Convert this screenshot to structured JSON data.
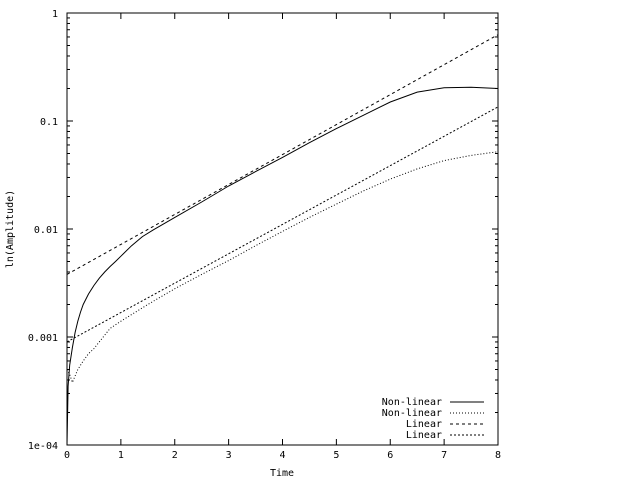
{
  "chart_data": {
    "type": "line",
    "title": "",
    "xlabel": "Time",
    "ylabel": "ln(Amplitude)",
    "xlim": [
      0,
      8
    ],
    "ylim": [
      0.0001,
      1
    ],
    "yscale": "log",
    "grid": false,
    "legend_position": "bottom-right",
    "x_ticks": [
      0,
      1,
      2,
      3,
      4,
      5,
      6,
      7,
      8
    ],
    "x_tick_labels": [
      "0",
      "1",
      "2",
      "3",
      "4",
      "5",
      "6",
      "7",
      "8"
    ],
    "y_ticks": [
      0.0001,
      0.001,
      0.01,
      0.1,
      1
    ],
    "y_tick_labels": [
      "1e-04",
      "0.001",
      "0.01",
      "0.1",
      "1"
    ],
    "series": [
      {
        "name": "Non-linear",
        "style": "solid",
        "x": [
          0.0,
          0.02,
          0.05,
          0.1,
          0.15,
          0.2,
          0.25,
          0.3,
          0.4,
          0.5,
          0.6,
          0.7,
          0.8,
          0.9,
          1.0,
          1.2,
          1.4,
          1.6,
          1.8,
          2.0,
          2.5,
          3.0,
          3.5,
          4.0,
          4.5,
          5.0,
          5.5,
          6.0,
          6.5,
          7.0,
          7.5,
          8.0
        ],
        "y": [
          0.0001,
          0.00035,
          0.00055,
          0.0008,
          0.0011,
          0.0014,
          0.0017,
          0.002,
          0.0025,
          0.003,
          0.0035,
          0.004,
          0.0045,
          0.005,
          0.0056,
          0.007,
          0.0085,
          0.0098,
          0.0112,
          0.0128,
          0.0178,
          0.025,
          0.034,
          0.046,
          0.063,
          0.085,
          0.113,
          0.15,
          0.185,
          0.203,
          0.205,
          0.2
        ]
      },
      {
        "name": "Non-linear",
        "style": "dotted",
        "x": [
          0.0,
          0.05,
          0.1,
          0.2,
          0.3,
          0.4,
          0.5,
          0.6,
          0.8,
          1.0,
          1.5,
          2.0,
          2.5,
          3.0,
          3.5,
          4.0,
          4.5,
          5.0,
          5.5,
          6.0,
          6.5,
          7.0,
          7.5,
          8.0
        ],
        "y": [
          0.0005,
          0.00045,
          0.00038,
          0.0005,
          0.0006,
          0.0007,
          0.00078,
          0.0009,
          0.0012,
          0.0014,
          0.002,
          0.0028,
          0.0038,
          0.0051,
          0.007,
          0.0095,
          0.0128,
          0.017,
          0.0225,
          0.029,
          0.036,
          0.043,
          0.048,
          0.052
        ]
      },
      {
        "name": "Linear",
        "style": "dashed",
        "x": [
          0,
          8
        ],
        "y": [
          0.0038,
          0.63
        ]
      },
      {
        "name": "Linear",
        "style": "fine-dashed",
        "x": [
          0,
          8
        ],
        "y": [
          0.0009,
          0.135
        ]
      }
    ]
  }
}
